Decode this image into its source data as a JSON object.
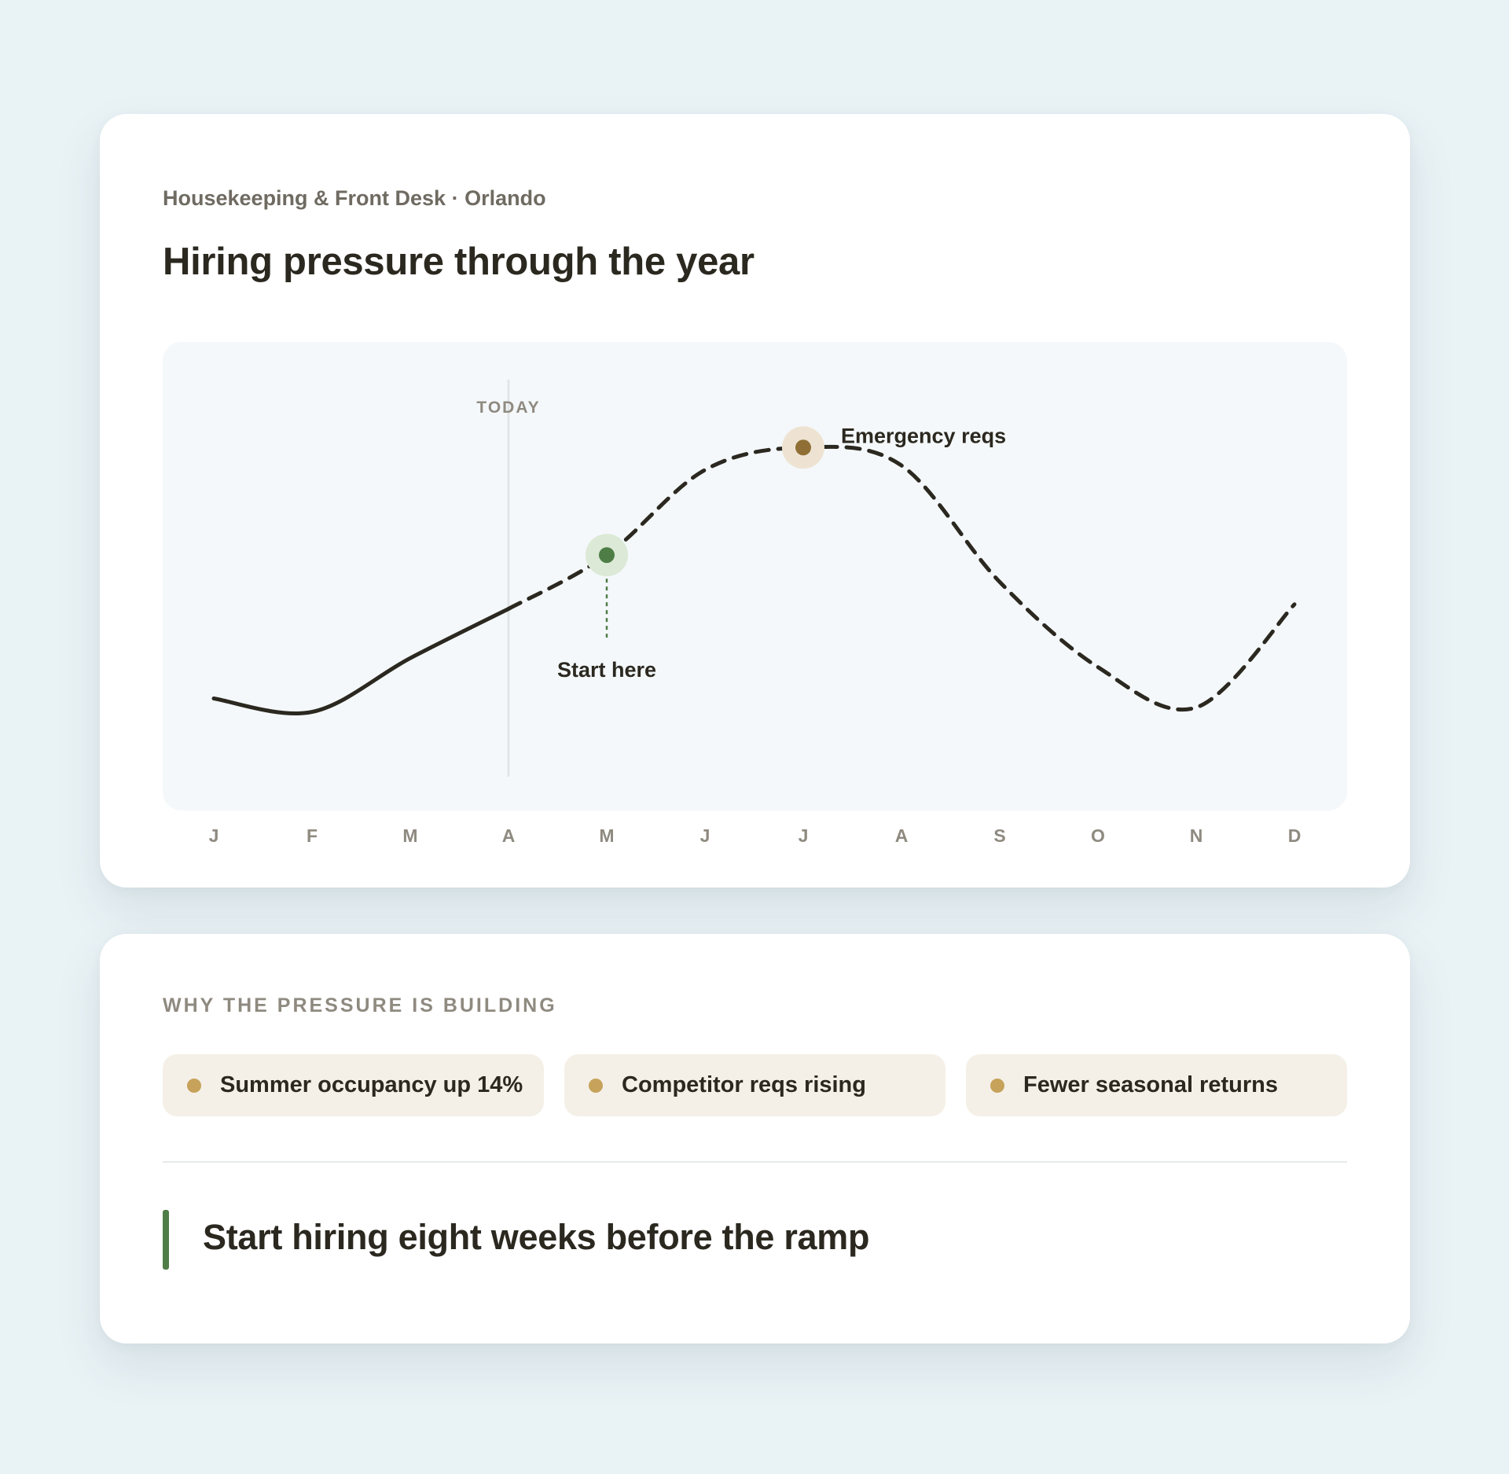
{
  "chart_card": {
    "eyebrow": "Housekeeping & Front Desk · Orlando",
    "title": "Hiring pressure through the year"
  },
  "chart_data": {
    "type": "line",
    "categories": [
      "J",
      "F",
      "M",
      "A",
      "M",
      "J",
      "J",
      "A",
      "S",
      "O",
      "N",
      "D"
    ],
    "series": [
      {
        "values": [
          35,
          32,
          44,
          55,
          67,
          86,
          91,
          87,
          61,
          42,
          33,
          56
        ],
        "style_by_index": "solid through index 3 (to Today), dashed after"
      }
    ],
    "ylim": [
      0,
      100
    ],
    "today": {
      "label": "TODAY",
      "index": 3
    },
    "annotations": [
      {
        "label": "Start here",
        "index": 4,
        "value": 67,
        "color": "#4f7d46",
        "halo": "#dbe9d6"
      },
      {
        "label": "Emergency reqs",
        "index": 6,
        "value": 91,
        "color": "#8f6f35",
        "halo": "#eee3d2"
      }
    ],
    "grid": false,
    "legend": "none",
    "line_color": "#2b2820"
  },
  "why_card": {
    "section_label": "WHY THE PRESSURE IS BUILDING",
    "chips": [
      {
        "label": "Summer occupancy up 14%"
      },
      {
        "label": "Competitor reqs rising"
      },
      {
        "label": "Fewer seasonal returns"
      }
    ],
    "callout": "Start hiring eight weeks before the ramp",
    "colors": {
      "chip_dot": "#c6a25a",
      "callout_bar": "#4f7d46"
    }
  }
}
